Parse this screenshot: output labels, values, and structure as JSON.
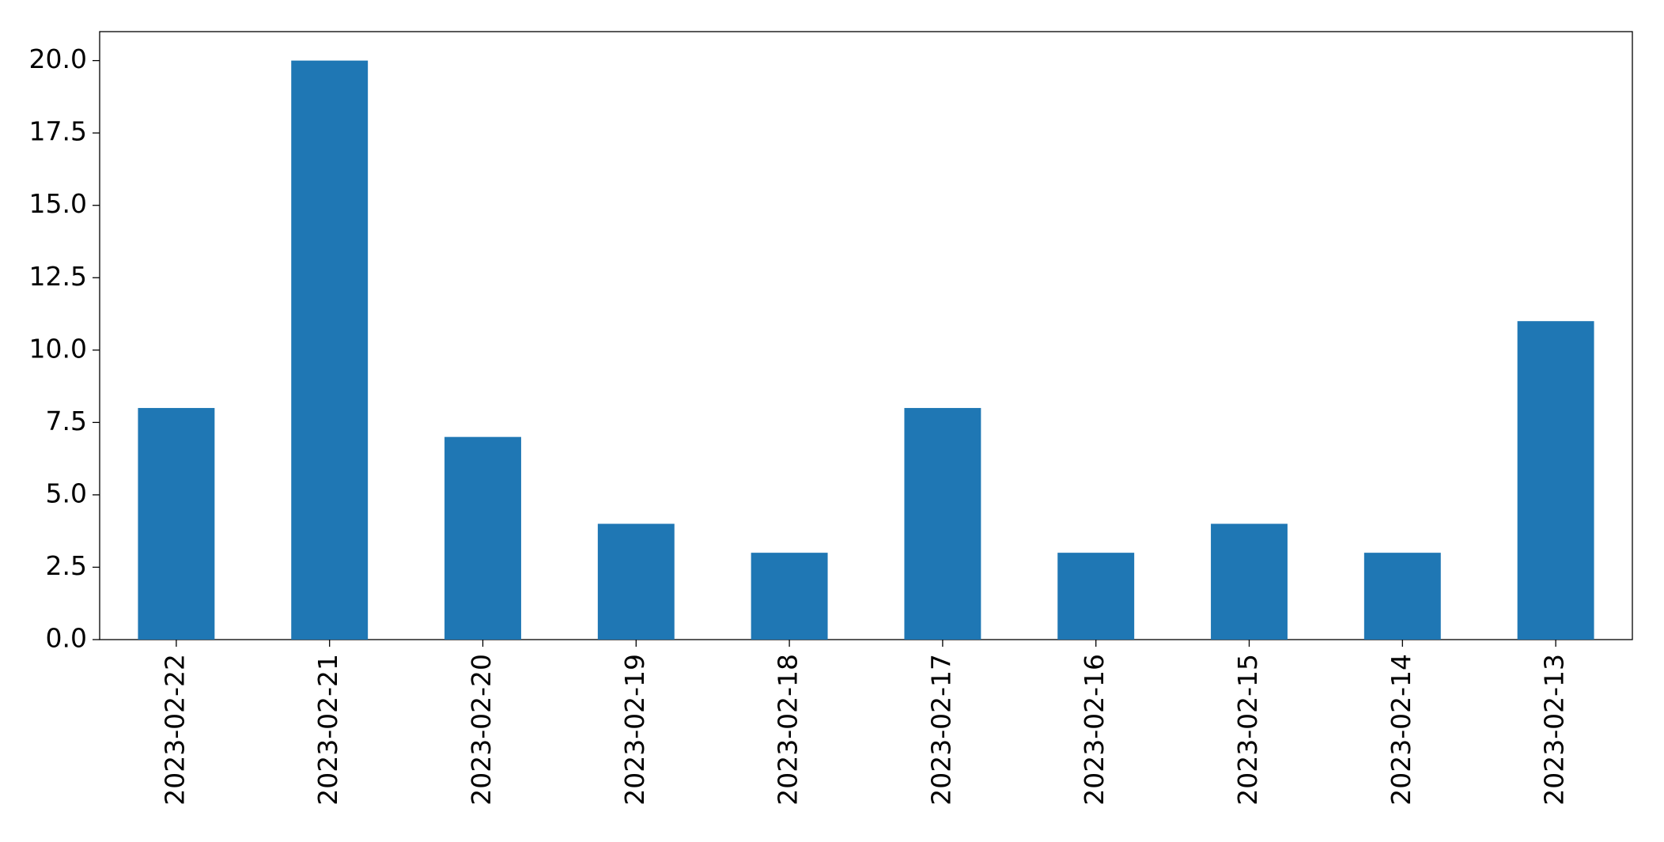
{
  "chart_data": {
    "type": "bar",
    "categories": [
      "2023-02-22",
      "2023-02-21",
      "2023-02-20",
      "2023-02-19",
      "2023-02-18",
      "2023-02-17",
      "2023-02-16",
      "2023-02-15",
      "2023-02-14",
      "2023-02-13"
    ],
    "values": [
      8,
      20,
      7,
      4,
      3,
      8,
      3,
      4,
      3,
      11
    ],
    "color": "#1f77b4",
    "ylim": [
      0,
      21
    ],
    "yticks": [
      {
        "value": 0,
        "label": "0.0"
      },
      2.5,
      {
        "value": 5,
        "label": "5.0"
      },
      7.5,
      {
        "value": 10,
        "label": "10.0"
      },
      12.5,
      {
        "value": 15,
        "label": "15.0"
      },
      17.5,
      {
        "value": 20,
        "label": "20.0"
      }
    ],
    "grid": false
  }
}
